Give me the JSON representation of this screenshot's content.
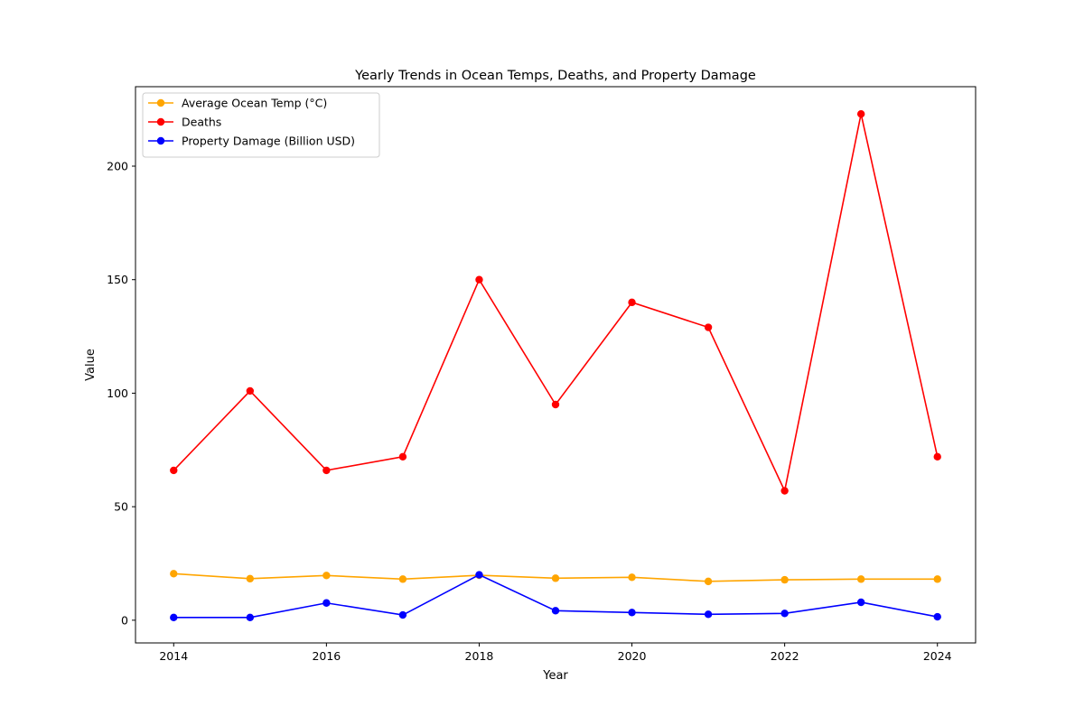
{
  "chart_data": {
    "type": "line",
    "title": "Yearly Trends in Ocean Temps, Deaths, and Property Damage",
    "xlabel": "Year",
    "ylabel": "Value",
    "x": [
      2014,
      2015,
      2016,
      2017,
      2018,
      2019,
      2020,
      2021,
      2022,
      2023,
      2024
    ],
    "xlim": [
      2013.5,
      2024.5
    ],
    "ylim": [
      -10,
      235
    ],
    "xticks": [
      2014,
      2016,
      2018,
      2020,
      2022,
      2024
    ],
    "yticks": [
      0,
      50,
      100,
      150,
      200
    ],
    "grid": false,
    "legend_position": "top-left",
    "series": [
      {
        "name": "Average Ocean Temp (°C)",
        "color": "#ffa500",
        "values": [
          20.5,
          18.3,
          19.7,
          18.1,
          19.8,
          18.5,
          18.9,
          17.1,
          17.8,
          18.1,
          18.1
        ]
      },
      {
        "name": "Deaths",
        "color": "#ff0000",
        "values": [
          66,
          101,
          66,
          72,
          150,
          95,
          140,
          129,
          57,
          223,
          72
        ]
      },
      {
        "name": "Property Damage (Billion USD)",
        "color": "#0000ff",
        "values": [
          1.2,
          1.2,
          7.6,
          2.3,
          20,
          4.2,
          3.4,
          2.6,
          3.0,
          7.9,
          1.5
        ]
      }
    ]
  }
}
